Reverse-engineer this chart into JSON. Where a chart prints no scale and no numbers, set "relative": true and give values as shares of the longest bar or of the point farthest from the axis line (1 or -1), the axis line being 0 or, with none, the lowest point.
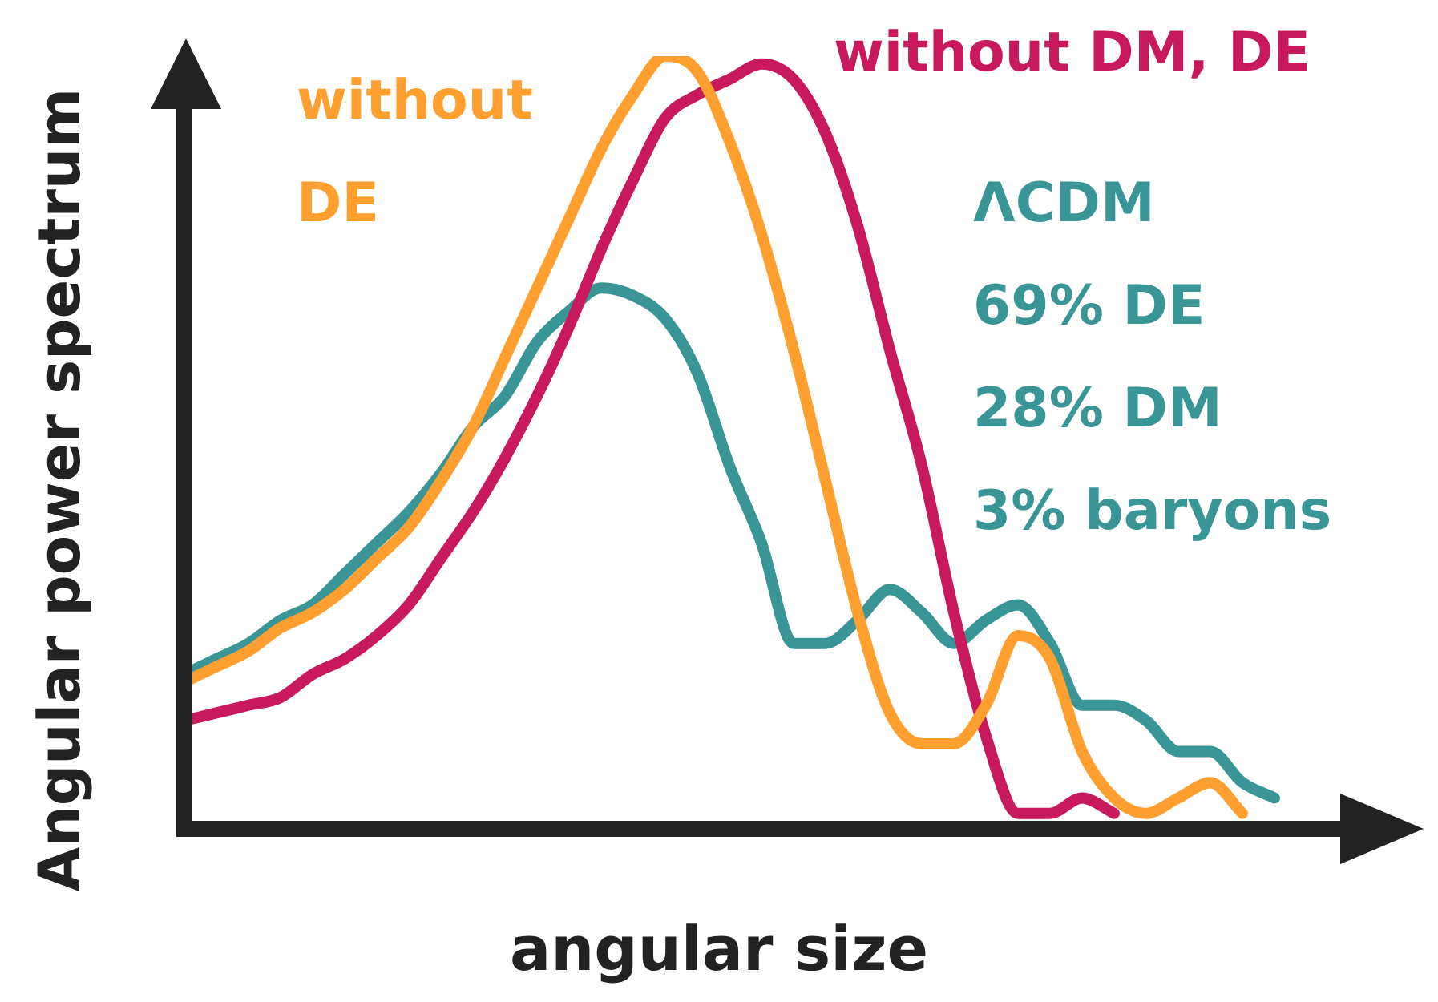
{
  "chart_data": {
    "type": "line",
    "relative": true,
    "xlabel": "angular size",
    "ylabel": "Angular power spectrum",
    "categories": [
      null,
      null,
      null,
      null,
      null,
      null,
      null,
      null,
      null,
      null,
      null,
      null,
      null,
      null,
      null,
      null,
      null,
      null,
      null,
      null,
      null,
      null,
      null,
      null,
      null,
      null,
      null,
      null,
      null,
      null,
      null,
      null,
      null,
      null,
      null
    ],
    "legend": false,
    "marker": "none",
    "series": [
      {
        "name": "without DE",
        "color": "#ff9f2f",
        "values": [
          0.19,
          0.21,
          0.23,
          0.26,
          0.28,
          0.31,
          0.35,
          0.39,
          0.45,
          0.52,
          0.61,
          0.7,
          0.79,
          0.88,
          0.95,
          1,
          0.98,
          0.89,
          0.77,
          0.62,
          0.45,
          0.28,
          0.15,
          0.11,
          0.11,
          0.16,
          0.25,
          0.22,
          0.1,
          0.04,
          0.02,
          0.04,
          0.06,
          0.02,
          null
        ]
      },
      {
        "name": "without DM, DE",
        "color": "#c8195c",
        "values": [
          0.14,
          0.15,
          0.16,
          0.17,
          0.2,
          0.22,
          0.25,
          0.29,
          0.35,
          0.41,
          0.48,
          0.56,
          0.65,
          0.75,
          0.84,
          0.92,
          0.95,
          0.97,
          0.99,
          0.97,
          0.9,
          0.78,
          0.62,
          0.47,
          0.28,
          0.12,
          0.02,
          0.02,
          0.04,
          0.02,
          null,
          null,
          null,
          null,
          null
        ]
      },
      {
        "name": "ΛCDM",
        "color": "#3a9596",
        "values": [
          0.2,
          0.22,
          0.24,
          0.27,
          0.29,
          0.33,
          0.37,
          0.41,
          0.46,
          0.52,
          0.56,
          0.63,
          0.67,
          0.7,
          0.69,
          0.66,
          0.59,
          0.47,
          0.37,
          0.24,
          0.24,
          0.27,
          0.31,
          0.28,
          0.24,
          0.27,
          0.29,
          0.24,
          0.16,
          0.16,
          0.14,
          0.1,
          0.1,
          0.06,
          0.04
        ]
      }
    ],
    "annotations": [
      "69% DE",
      "28% DM",
      "3% baryons"
    ]
  }
}
